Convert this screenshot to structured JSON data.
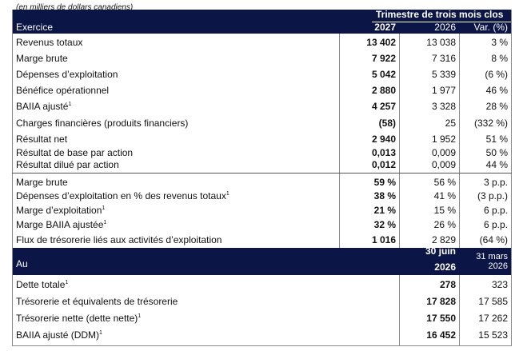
{
  "caption": "(en milliers de dollars canadiens)",
  "header1": {
    "group_title": "Trimestre de trois mois clos",
    "row_label": "Exercice",
    "col1": "2027",
    "col2": "2026",
    "col3": "Var. (%)"
  },
  "section1": [
    {
      "label": "Revenus totaux",
      "sup": "",
      "c1": "13 402",
      "c2": "13 038",
      "c3": "3 %"
    },
    {
      "label": "Marge brute",
      "sup": "",
      "c1": "7 922",
      "c2": "7 316",
      "c3": "8 %"
    },
    {
      "label": "Dépenses d’exploitation",
      "sup": "",
      "c1": "5 042",
      "c2": "5 339",
      "c3": "(6 %)"
    },
    {
      "label": "Bénéfice opérationnel",
      "sup": "",
      "c1": "2 880",
      "c2": "1 977",
      "c3": "46 %"
    },
    {
      "label": "BAIIA ajusté",
      "sup": "1",
      "c1": "4 257",
      "c2": "3 328",
      "c3": "28 %"
    },
    {
      "label": "Charges financières (produits financiers)",
      "sup": "",
      "c1": "(58)",
      "c2": "25",
      "c3": "(332 %)"
    },
    {
      "label": "Résultat net",
      "sup": "",
      "c1": "2 940",
      "c2": "1 952",
      "c3": "51 %"
    },
    {
      "label": "Résultat de base par action",
      "sup": "",
      "c1": "0,013",
      "c2": "0,009",
      "c3": "50 %"
    },
    {
      "label": "Résultat dilué par action",
      "sup": "",
      "c1": "0,012",
      "c2": "0,009",
      "c3": "44 %"
    }
  ],
  "section2": [
    {
      "label": "Marge brute",
      "sup": "",
      "c1": "59 %",
      "c2": "56 %",
      "c3": "3 p.p."
    },
    {
      "label": "Dépenses d’exploitation en % des revenus totaux",
      "sup": "1",
      "c1": "38 %",
      "c2": "41 %",
      "c3": "(3 p.p.)"
    },
    {
      "label": "Marge d’exploitation",
      "sup": "1",
      "c1": "21 %",
      "c2": "15 %",
      "c3": "6 p.p."
    },
    {
      "label": "Marge BAIIA ajustée",
      "sup": "1",
      "c1": "32 %",
      "c2": "26 %",
      "c3": "6 p.p."
    },
    {
      "label": "Flux de trésorerie liés aux activités d’exploitation",
      "sup": "",
      "c1": "1 016",
      "c2": "2 829",
      "c3": "(64 %)"
    }
  ],
  "header2": {
    "row_label": "Au",
    "col1_line1": "30 juin",
    "col1_line2": "2026",
    "col2_line1": "31 mars",
    "col2_line2": "2026"
  },
  "section3": [
    {
      "label": "Dette totale",
      "sup": "1",
      "c1": "278",
      "c2": "323"
    },
    {
      "label": "Trésorerie et équivalents de trésorerie",
      "sup": "",
      "c1": "17 828",
      "c2": "17 585"
    },
    {
      "label": "Trésorerie nette (dette nette)",
      "sup": "1",
      "c1": "17 550",
      "c2": "17 262"
    },
    {
      "label": "BAIIA ajusté (DDM)",
      "sup": "1",
      "c1": "16 452",
      "c2": "15 523"
    }
  ]
}
